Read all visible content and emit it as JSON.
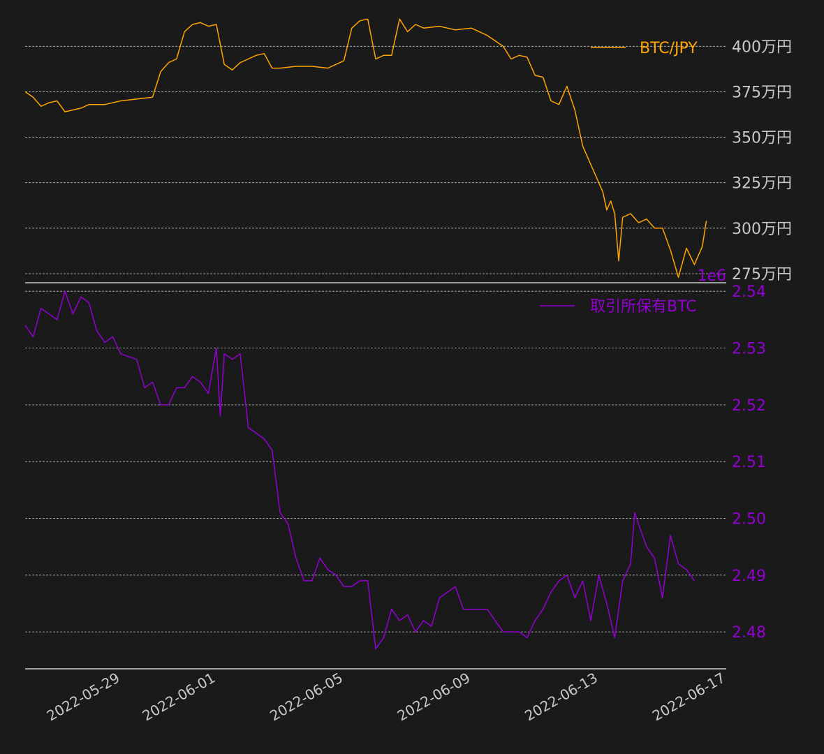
{
  "colors": {
    "background": "#1a1a1a",
    "price": "#ffa500",
    "holdings": "#9400d3",
    "axis_text": "#c8c8c8",
    "grid": "#bfbfbf",
    "spine": "#d0d0d0"
  },
  "chart_data": [
    {
      "type": "line",
      "panel": "top",
      "legend": "top-right",
      "series": [
        {
          "name": "BTC/JPY"
        }
      ],
      "x_range": [
        "2022-05-26",
        "2022-06-17"
      ],
      "ylim": [
        2700000,
        4170000
      ],
      "grid": true,
      "yticks": [
        {
          "value": 4000000,
          "label": "400万円"
        },
        {
          "value": 3750000,
          "label": "375万円"
        },
        {
          "value": 3500000,
          "label": "350万円"
        },
        {
          "value": 3250000,
          "label": "325万円"
        },
        {
          "value": 3000000,
          "label": "300万円"
        },
        {
          "value": 2750000,
          "label": "275万円"
        }
      ],
      "points": [
        [
          "2022-05-26T00:00",
          3750000
        ],
        [
          "2022-05-26T06:00",
          3720000
        ],
        [
          "2022-05-26T12:00",
          3670000
        ],
        [
          "2022-05-26T18:00",
          3690000
        ],
        [
          "2022-05-27T00:00",
          3700000
        ],
        [
          "2022-05-27T06:00",
          3640000
        ],
        [
          "2022-05-27T12:00",
          3650000
        ],
        [
          "2022-05-27T18:00",
          3660000
        ],
        [
          "2022-05-28T00:00",
          3680000
        ],
        [
          "2022-05-28T12:00",
          3680000
        ],
        [
          "2022-05-29T00:00",
          3700000
        ],
        [
          "2022-05-29T12:00",
          3710000
        ],
        [
          "2022-05-30T00:00",
          3720000
        ],
        [
          "2022-05-30T06:00",
          3860000
        ],
        [
          "2022-05-30T12:00",
          3910000
        ],
        [
          "2022-05-30T18:00",
          3930000
        ],
        [
          "2022-05-31T00:00",
          4080000
        ],
        [
          "2022-05-31T06:00",
          4120000
        ],
        [
          "2022-05-31T12:00",
          4130000
        ],
        [
          "2022-05-31T18:00",
          4110000
        ],
        [
          "2022-06-01T00:00",
          4120000
        ],
        [
          "2022-06-01T06:00",
          3900000
        ],
        [
          "2022-06-01T12:00",
          3870000
        ],
        [
          "2022-06-01T18:00",
          3910000
        ],
        [
          "2022-06-02T00:00",
          3930000
        ],
        [
          "2022-06-02T06:00",
          3950000
        ],
        [
          "2022-06-02T12:00",
          3960000
        ],
        [
          "2022-06-02T18:00",
          3880000
        ],
        [
          "2022-06-03T00:00",
          3880000
        ],
        [
          "2022-06-03T12:00",
          3890000
        ],
        [
          "2022-06-04T00:00",
          3890000
        ],
        [
          "2022-06-04T12:00",
          3880000
        ],
        [
          "2022-06-05T00:00",
          3920000
        ],
        [
          "2022-06-05T06:00",
          4100000
        ],
        [
          "2022-06-05T12:00",
          4140000
        ],
        [
          "2022-06-05T18:00",
          4150000
        ],
        [
          "2022-06-06T00:00",
          3930000
        ],
        [
          "2022-06-06T06:00",
          3950000
        ],
        [
          "2022-06-06T12:00",
          3950000
        ],
        [
          "2022-06-06T18:00",
          4150000
        ],
        [
          "2022-06-07T00:00",
          4080000
        ],
        [
          "2022-06-07T06:00",
          4120000
        ],
        [
          "2022-06-07T12:00",
          4100000
        ],
        [
          "2022-06-08T00:00",
          4110000
        ],
        [
          "2022-06-08T12:00",
          4090000
        ],
        [
          "2022-06-09T00:00",
          4100000
        ],
        [
          "2022-06-09T12:00",
          4060000
        ],
        [
          "2022-06-10T00:00",
          4000000
        ],
        [
          "2022-06-10T06:00",
          3930000
        ],
        [
          "2022-06-10T12:00",
          3950000
        ],
        [
          "2022-06-10T18:00",
          3940000
        ],
        [
          "2022-06-11T00:00",
          3840000
        ],
        [
          "2022-06-11T06:00",
          3830000
        ],
        [
          "2022-06-11T12:00",
          3700000
        ],
        [
          "2022-06-11T18:00",
          3680000
        ],
        [
          "2022-06-12T00:00",
          3780000
        ],
        [
          "2022-06-12T06:00",
          3650000
        ],
        [
          "2022-06-12T12:00",
          3450000
        ],
        [
          "2022-06-12T18:00",
          3350000
        ],
        [
          "2022-06-13T00:00",
          3250000
        ],
        [
          "2022-06-13T03:00",
          3200000
        ],
        [
          "2022-06-13T06:00",
          3100000
        ],
        [
          "2022-06-13T09:00",
          3150000
        ],
        [
          "2022-06-13T12:00",
          3080000
        ],
        [
          "2022-06-13T15:00",
          2820000
        ],
        [
          "2022-06-13T18:00",
          3060000
        ],
        [
          "2022-06-14T00:00",
          3080000
        ],
        [
          "2022-06-14T06:00",
          3030000
        ],
        [
          "2022-06-14T12:00",
          3050000
        ],
        [
          "2022-06-14T18:00",
          3000000
        ],
        [
          "2022-06-15T00:00",
          3000000
        ],
        [
          "2022-06-15T06:00",
          2880000
        ],
        [
          "2022-06-15T12:00",
          2730000
        ],
        [
          "2022-06-15T18:00",
          2890000
        ],
        [
          "2022-06-16T00:00",
          2800000
        ],
        [
          "2022-06-16T06:00",
          2900000
        ],
        [
          "2022-06-16T09:00",
          3040000
        ]
      ]
    },
    {
      "type": "line",
      "panel": "bottom",
      "legend": "top-right",
      "series": [
        {
          "name": "取引所保有BTC"
        }
      ],
      "offset_label": "1e6",
      "x_range": [
        "2022-05-26",
        "2022-06-17"
      ],
      "ylim": [
        2.4735,
        2.5415
      ],
      "grid": true,
      "yticks": [
        {
          "value": 2.54,
          "label": "2.54"
        },
        {
          "value": 2.53,
          "label": "2.53"
        },
        {
          "value": 2.52,
          "label": "2.52"
        },
        {
          "value": 2.51,
          "label": "2.51"
        },
        {
          "value": 2.5,
          "label": "2.50"
        },
        {
          "value": 2.49,
          "label": "2.49"
        },
        {
          "value": 2.48,
          "label": "2.48"
        }
      ],
      "xticks": [
        "2022-05-29",
        "2022-06-01",
        "2022-06-05",
        "2022-06-09",
        "2022-06-13",
        "2022-06-17"
      ],
      "points": [
        [
          "2022-05-26T00:00",
          2.534
        ],
        [
          "2022-05-26T06:00",
          2.532
        ],
        [
          "2022-05-26T12:00",
          2.537
        ],
        [
          "2022-05-26T18:00",
          2.536
        ],
        [
          "2022-05-27T00:00",
          2.535
        ],
        [
          "2022-05-27T06:00",
          2.54
        ],
        [
          "2022-05-27T12:00",
          2.536
        ],
        [
          "2022-05-27T18:00",
          2.539
        ],
        [
          "2022-05-28T00:00",
          2.538
        ],
        [
          "2022-05-28T06:00",
          2.533
        ],
        [
          "2022-05-28T12:00",
          2.531
        ],
        [
          "2022-05-28T18:00",
          2.532
        ],
        [
          "2022-05-29T00:00",
          2.529
        ],
        [
          "2022-05-29T12:00",
          2.528
        ],
        [
          "2022-05-29T18:00",
          2.523
        ],
        [
          "2022-05-30T00:00",
          2.524
        ],
        [
          "2022-05-30T06:00",
          2.52
        ],
        [
          "2022-05-30T12:00",
          2.52
        ],
        [
          "2022-05-30T18:00",
          2.523
        ],
        [
          "2022-05-31T00:00",
          2.523
        ],
        [
          "2022-05-31T06:00",
          2.525
        ],
        [
          "2022-05-31T12:00",
          2.524
        ],
        [
          "2022-05-31T18:00",
          2.522
        ],
        [
          "2022-06-01T00:00",
          2.53
        ],
        [
          "2022-06-01T03:00",
          2.518
        ],
        [
          "2022-06-01T06:00",
          2.529
        ],
        [
          "2022-06-01T12:00",
          2.528
        ],
        [
          "2022-06-01T18:00",
          2.529
        ],
        [
          "2022-06-02T00:00",
          2.516
        ],
        [
          "2022-06-02T06:00",
          2.515
        ],
        [
          "2022-06-02T12:00",
          2.514
        ],
        [
          "2022-06-02T18:00",
          2.512
        ],
        [
          "2022-06-03T00:00",
          2.501
        ],
        [
          "2022-06-03T06:00",
          2.499
        ],
        [
          "2022-06-03T12:00",
          2.493
        ],
        [
          "2022-06-03T18:00",
          2.489
        ],
        [
          "2022-06-04T00:00",
          2.489
        ],
        [
          "2022-06-04T06:00",
          2.493
        ],
        [
          "2022-06-04T12:00",
          2.491
        ],
        [
          "2022-06-04T18:00",
          2.49
        ],
        [
          "2022-06-05T00:00",
          2.488
        ],
        [
          "2022-06-05T06:00",
          2.488
        ],
        [
          "2022-06-05T12:00",
          2.489
        ],
        [
          "2022-06-05T18:00",
          2.489
        ],
        [
          "2022-06-06T00:00",
          2.477
        ],
        [
          "2022-06-06T06:00",
          2.479
        ],
        [
          "2022-06-06T12:00",
          2.484
        ],
        [
          "2022-06-06T18:00",
          2.482
        ],
        [
          "2022-06-07T00:00",
          2.483
        ],
        [
          "2022-06-07T06:00",
          2.48
        ],
        [
          "2022-06-07T12:00",
          2.482
        ],
        [
          "2022-06-07T18:00",
          2.481
        ],
        [
          "2022-06-08T00:00",
          2.486
        ],
        [
          "2022-06-08T06:00",
          2.487
        ],
        [
          "2022-06-08T12:00",
          2.488
        ],
        [
          "2022-06-08T18:00",
          2.484
        ],
        [
          "2022-06-09T00:00",
          2.484
        ],
        [
          "2022-06-09T12:00",
          2.484
        ],
        [
          "2022-06-09T18:00",
          2.482
        ],
        [
          "2022-06-10T00:00",
          2.48
        ],
        [
          "2022-06-10T12:00",
          2.48
        ],
        [
          "2022-06-10T18:00",
          2.479
        ],
        [
          "2022-06-11T00:00",
          2.482
        ],
        [
          "2022-06-11T06:00",
          2.484
        ],
        [
          "2022-06-11T12:00",
          2.487
        ],
        [
          "2022-06-11T18:00",
          2.489
        ],
        [
          "2022-06-12T00:00",
          2.49
        ],
        [
          "2022-06-12T06:00",
          2.486
        ],
        [
          "2022-06-12T12:00",
          2.489
        ],
        [
          "2022-06-12T18:00",
          2.482
        ],
        [
          "2022-06-13T00:00",
          2.49
        ],
        [
          "2022-06-13T06:00",
          2.485
        ],
        [
          "2022-06-13T12:00",
          2.479
        ],
        [
          "2022-06-13T15:00",
          2.484
        ],
        [
          "2022-06-13T18:00",
          2.489
        ],
        [
          "2022-06-14T00:00",
          2.492
        ],
        [
          "2022-06-14T03:00",
          2.501
        ],
        [
          "2022-06-14T06:00",
          2.499
        ],
        [
          "2022-06-14T12:00",
          2.495
        ],
        [
          "2022-06-14T18:00",
          2.493
        ],
        [
          "2022-06-15T00:00",
          2.486
        ],
        [
          "2022-06-15T06:00",
          2.497
        ],
        [
          "2022-06-15T12:00",
          2.492
        ],
        [
          "2022-06-15T18:00",
          2.491
        ],
        [
          "2022-06-16T00:00",
          2.489
        ]
      ]
    }
  ]
}
